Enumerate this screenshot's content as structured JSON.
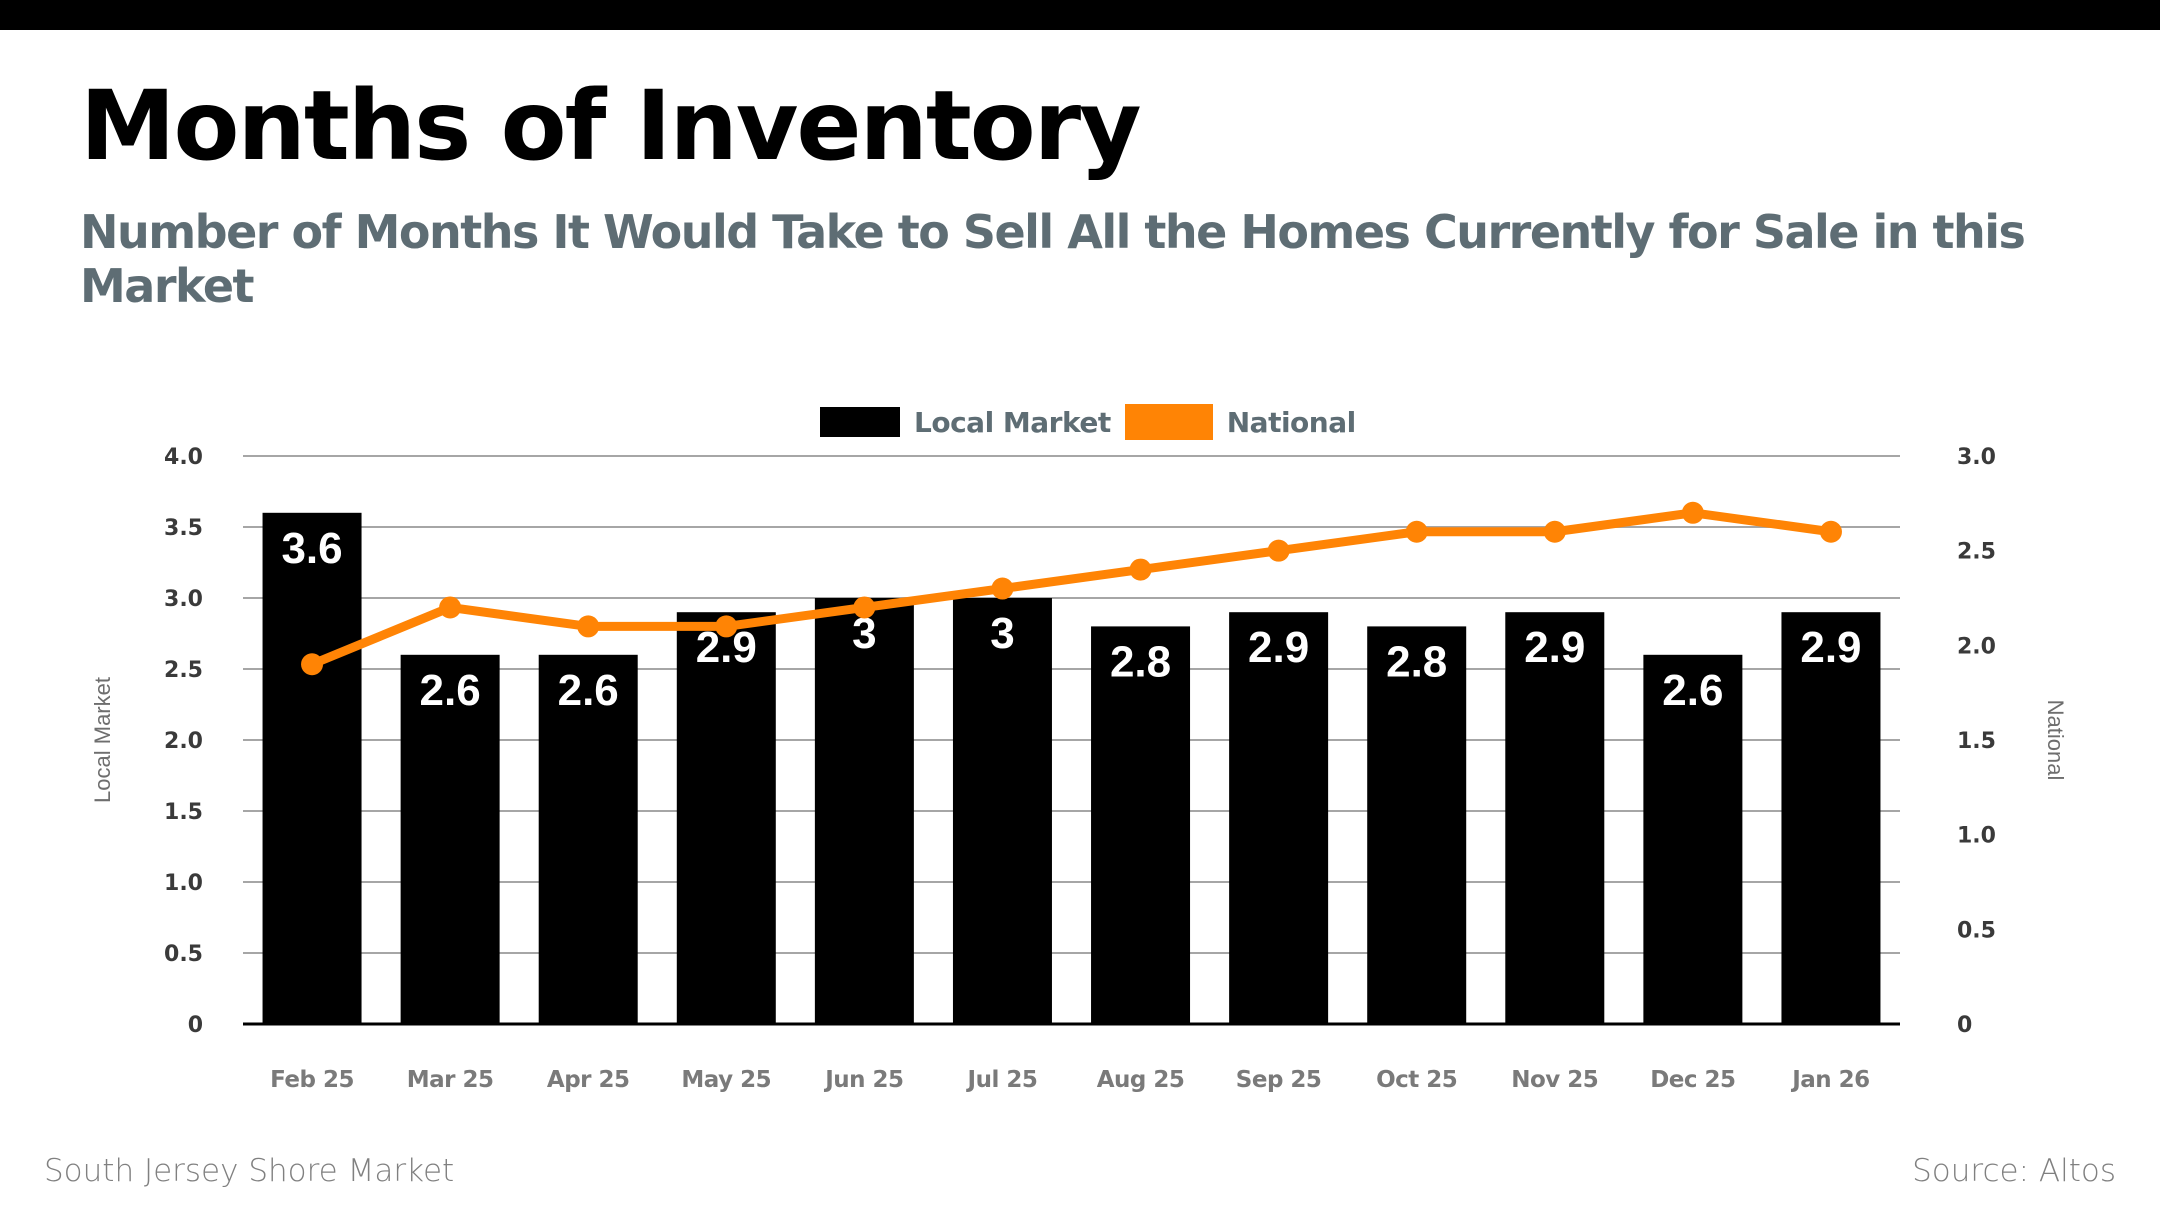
{
  "header": {
    "title": "Months of Inventory",
    "subtitle": "Number of Months It Would Take to Sell All the Homes Currently for Sale in this Market"
  },
  "footer": {
    "market": "South Jersey Shore Market",
    "source": "Source: Altos"
  },
  "colors": {
    "local": "#000000",
    "national": "#ff8405",
    "grid": "#a6a6a6",
    "subtitle": "#5e6d74"
  },
  "chart_data": {
    "type": "bar",
    "title": "Months of Inventory",
    "subtitle": "Number of Months It Would Take to Sell All the Homes Currently for Sale in this Market",
    "categories": [
      "Feb 25",
      "Mar 25",
      "Apr 25",
      "May 25",
      "Jun 25",
      "Jul 25",
      "Aug 25",
      "Sep 25",
      "Oct 25",
      "Nov 25",
      "Dec 25",
      "Jan 26"
    ],
    "series": [
      {
        "name": "Local Market",
        "type": "bar",
        "axis": "left",
        "values": [
          3.6,
          2.6,
          2.6,
          2.9,
          3,
          3,
          2.8,
          2.9,
          2.8,
          2.9,
          2.6,
          2.9
        ],
        "labels": [
          "3.6",
          "2.6",
          "2.6",
          "2.9",
          "3",
          "3",
          "2.8",
          "2.9",
          "2.8",
          "2.9",
          "2.6",
          "2.9"
        ]
      },
      {
        "name": "National",
        "type": "line",
        "axis": "right",
        "values": [
          1.9,
          2.2,
          2.1,
          2.1,
          2.2,
          2.3,
          2.4,
          2.5,
          2.6,
          2.6,
          2.7,
          2.6
        ]
      }
    ],
    "ylabel": "Local Market",
    "y2label": "National",
    "ylim": [
      0,
      4.0
    ],
    "y2lim": [
      0,
      3.0
    ],
    "yticks": [
      "0",
      "0.5",
      "1.0",
      "1.5",
      "2.0",
      "2.5",
      "3.0",
      "3.5",
      "4.0"
    ],
    "y2ticks": [
      "0",
      "0.5",
      "1.0",
      "1.5",
      "2.0",
      "2.5",
      "3.0"
    ],
    "grid": true,
    "legend": "top-center"
  }
}
